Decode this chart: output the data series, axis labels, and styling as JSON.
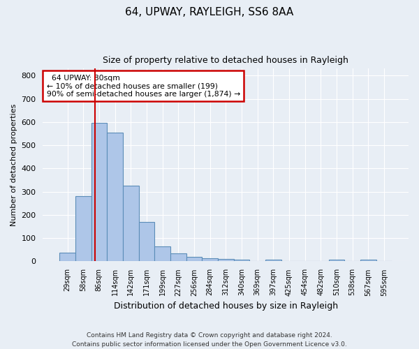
{
  "title1": "64, UPWAY, RAYLEIGH, SS6 8AA",
  "title2": "Size of property relative to detached houses in Rayleigh",
  "xlabel": "Distribution of detached houses by size in Rayleigh",
  "ylabel": "Number of detached properties",
  "footer": "Contains HM Land Registry data © Crown copyright and database right 2024.\nContains public sector information licensed under the Open Government Licence v3.0.",
  "bin_labels": [
    "29sqm",
    "58sqm",
    "86sqm",
    "114sqm",
    "142sqm",
    "171sqm",
    "199sqm",
    "227sqm",
    "256sqm",
    "284sqm",
    "312sqm",
    "340sqm",
    "369sqm",
    "397sqm",
    "425sqm",
    "454sqm",
    "482sqm",
    "510sqm",
    "538sqm",
    "567sqm",
    "595sqm"
  ],
  "bar_values": [
    37,
    280,
    597,
    553,
    327,
    170,
    65,
    35,
    20,
    12,
    10,
    8,
    0,
    8,
    0,
    0,
    0,
    8,
    0,
    8,
    0
  ],
  "bar_color": "#aec6e8",
  "bar_edge_color": "#5b8db8",
  "annotation_box_text": "  64 UPWAY: 80sqm\n← 10% of detached houses are smaller (199)\n90% of semi-detached houses are larger (1,874) →",
  "annotation_box_edge_color": "#cc0000",
  "vline_x": 1.75,
  "vline_color": "#cc0000",
  "ylim": [
    0,
    830
  ],
  "yticks": [
    0,
    100,
    200,
    300,
    400,
    500,
    600,
    700,
    800
  ],
  "bg_color": "#e8eef5",
  "plot_bg_color": "#e8eef5",
  "grid_color": "#ffffff",
  "title1_fontsize": 11,
  "title2_fontsize": 9,
  "ylabel_fontsize": 8,
  "xlabel_fontsize": 9,
  "footer_fontsize": 6.5,
  "xtick_fontsize": 7,
  "ytick_fontsize": 8
}
